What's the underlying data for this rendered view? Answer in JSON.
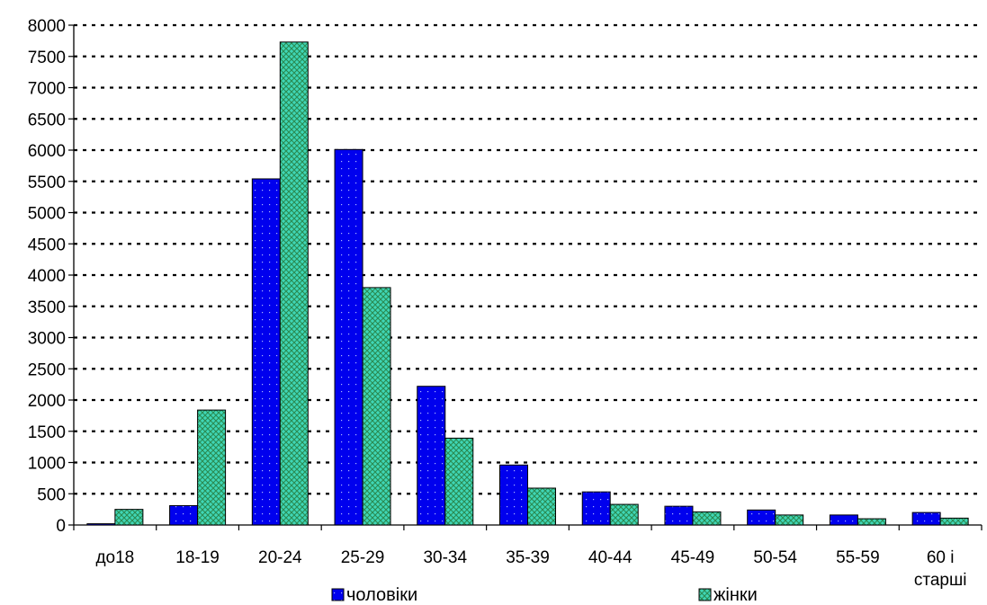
{
  "chart_data": {
    "type": "bar",
    "categories": [
      "до18",
      "18-19",
      "20-24",
      "25-29",
      "30-34",
      "35-39",
      "40-44",
      "45-49",
      "50-54",
      "55-59",
      "60 і старші"
    ],
    "series": [
      {
        "name": "чоловіки",
        "color": "#0000ee",
        "values": [
          20,
          310,
          5540,
          6010,
          2220,
          960,
          530,
          300,
          240,
          160,
          200
        ]
      },
      {
        "name": "жінки",
        "color": "#33ccaa",
        "values": [
          250,
          1840,
          7730,
          3800,
          1390,
          590,
          330,
          210,
          160,
          100,
          110
        ]
      }
    ],
    "title": "",
    "xlabel": "",
    "ylabel": "",
    "ylim": [
      0,
      8000
    ],
    "ytick_step": 500,
    "yticks": [
      "0",
      "500",
      "1000",
      "1500",
      "2000",
      "2500",
      "3000",
      "3500",
      "4000",
      "4500",
      "5000",
      "5500",
      "6000",
      "6500",
      "7000",
      "7500",
      "8000"
    ],
    "grid": true,
    "legend_position": "bottom"
  }
}
